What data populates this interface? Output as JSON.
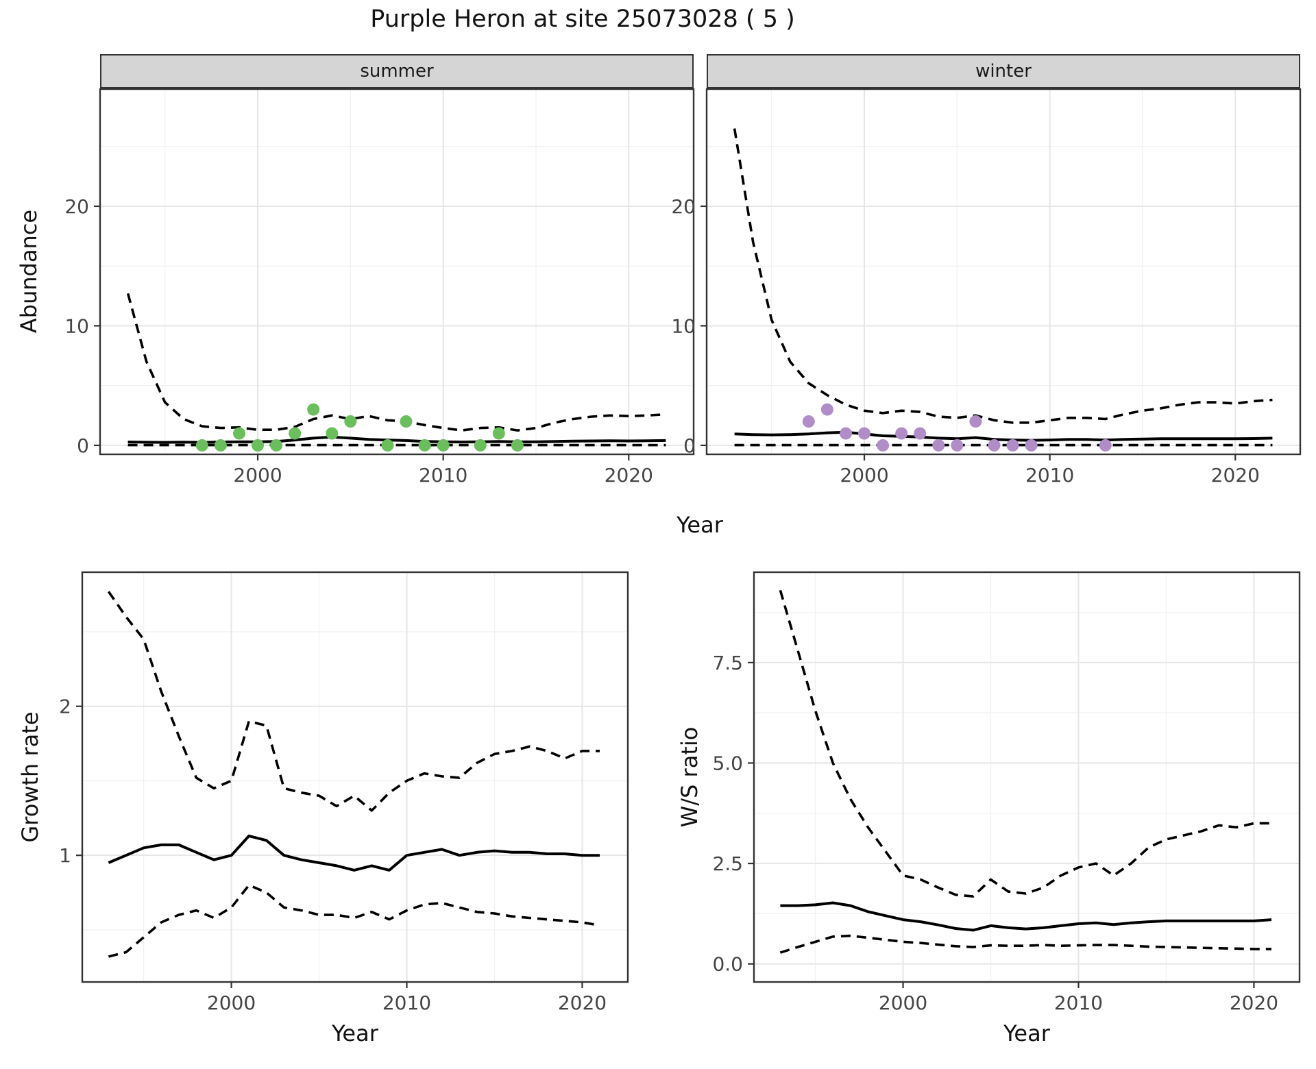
{
  "title": "Purple Heron at site 25073028 ( 5 )",
  "axes": {
    "x_title": "Year",
    "abundance_title": "Abundance",
    "growth_title": "Growth rate",
    "ws_title": "W/S ratio"
  },
  "facets": [
    {
      "label": "summer"
    },
    {
      "label": "winter"
    }
  ],
  "colors": {
    "summer_point": "#6abe5b",
    "winter_point": "#b18dc7",
    "line": "#000000",
    "strip_bg": "#d5d5d5",
    "panel_border": "#333333",
    "grid_major": "#e6e6e6",
    "grid_minor": "#f1f1f1",
    "tick_text": "#444444"
  },
  "chart_data": [
    {
      "id": "summer",
      "type": "line",
      "facet": "summer",
      "xlabel": "Year",
      "ylabel": "Abundance",
      "xlim": [
        1991.5,
        2023.5
      ],
      "ylim": [
        -0.75,
        29.8
      ],
      "xticks": {
        "values": [
          2000,
          2010,
          2020
        ],
        "labels": [
          "2000",
          "2010",
          "2020"
        ]
      },
      "yticks": {
        "values": [
          0,
          10,
          20
        ],
        "labels": [
          "0",
          "10",
          "20"
        ]
      },
      "x_minor": [
        1995,
        2005,
        2015
      ],
      "y_minor": [
        5,
        15,
        25
      ],
      "x": [
        1993,
        1994,
        1995,
        1996,
        1997,
        1998,
        1999,
        2000,
        2001,
        2002,
        2003,
        2004,
        2005,
        2006,
        2007,
        2008,
        2009,
        2010,
        2011,
        2012,
        2013,
        2014,
        2015,
        2016,
        2017,
        2018,
        2019,
        2020,
        2021,
        2022
      ],
      "series": [
        {
          "name": "mean",
          "style": "solid",
          "values": [
            0.28,
            0.26,
            0.25,
            0.27,
            0.25,
            0.28,
            0.3,
            0.3,
            0.33,
            0.45,
            0.6,
            0.7,
            0.6,
            0.5,
            0.45,
            0.4,
            0.33,
            0.3,
            0.28,
            0.3,
            0.32,
            0.3,
            0.3,
            0.33,
            0.35,
            0.37,
            0.38,
            0.37,
            0.38,
            0.4
          ]
        },
        {
          "name": "upper_ci",
          "style": "dashed",
          "values": [
            12.7,
            7.0,
            3.6,
            2.2,
            1.6,
            1.45,
            1.5,
            1.3,
            1.3,
            1.55,
            2.2,
            2.5,
            2.2,
            2.45,
            2.1,
            2.0,
            1.7,
            1.45,
            1.25,
            1.45,
            1.5,
            1.25,
            1.45,
            1.9,
            2.2,
            2.4,
            2.5,
            2.45,
            2.5,
            2.6
          ]
        },
        {
          "name": "lower_ci",
          "style": "dashed",
          "values": [
            0.02,
            0.02,
            0.02,
            0.02,
            0.02,
            0.02,
            0.02,
            0.02,
            0.02,
            0.02,
            0.02,
            0.02,
            0.02,
            0.02,
            0.02,
            0.02,
            0.02,
            0.02,
            0.02,
            0.02,
            0.02,
            0.02,
            0.02,
            0.02,
            0.02,
            0.02,
            0.02,
            0.02,
            0.02,
            0.02
          ]
        }
      ],
      "points": {
        "color_key": "summer_point",
        "x": [
          1997,
          1998,
          1999,
          2000,
          2001,
          2002,
          2003,
          2004,
          2005,
          2007,
          2008,
          2009,
          2010,
          2012,
          2013,
          2014
        ],
        "y": [
          0,
          0,
          1,
          0,
          0,
          1,
          3,
          1,
          2,
          0,
          2,
          0,
          0,
          0,
          1,
          0
        ]
      }
    },
    {
      "id": "winter",
      "type": "line",
      "facet": "winter",
      "xlabel": "Year",
      "ylabel": "Abundance",
      "xlim": [
        1991.5,
        2023.5
      ],
      "ylim": [
        -0.75,
        29.8
      ],
      "xticks": {
        "values": [
          2000,
          2010,
          2020
        ],
        "labels": [
          "2000",
          "2010",
          "2020"
        ]
      },
      "yticks": {
        "values": [
          0,
          10,
          20
        ],
        "labels": [
          "0",
          "10",
          "20"
        ]
      },
      "x_minor": [
        1995,
        2005,
        2015
      ],
      "y_minor": [
        5,
        15,
        25
      ],
      "x": [
        1993,
        1994,
        1995,
        1996,
        1997,
        1998,
        1999,
        2000,
        2001,
        2002,
        2003,
        2004,
        2005,
        2006,
        2007,
        2008,
        2009,
        2010,
        2011,
        2012,
        2013,
        2014,
        2015,
        2016,
        2017,
        2018,
        2019,
        2020,
        2021,
        2022
      ],
      "series": [
        {
          "name": "mean",
          "style": "solid",
          "values": [
            0.95,
            0.9,
            0.88,
            0.9,
            0.95,
            1.05,
            1.1,
            0.95,
            0.8,
            0.75,
            0.7,
            0.6,
            0.55,
            0.65,
            0.5,
            0.45,
            0.42,
            0.45,
            0.5,
            0.5,
            0.45,
            0.5,
            0.52,
            0.55,
            0.55,
            0.55,
            0.55,
            0.55,
            0.57,
            0.6
          ]
        },
        {
          "name": "upper_ci",
          "style": "dashed",
          "values": [
            26.5,
            17.0,
            10.5,
            7.0,
            5.2,
            4.2,
            3.4,
            2.9,
            2.7,
            2.9,
            2.8,
            2.4,
            2.3,
            2.5,
            2.1,
            1.9,
            1.9,
            2.1,
            2.3,
            2.3,
            2.2,
            2.6,
            2.9,
            3.1,
            3.4,
            3.6,
            3.6,
            3.5,
            3.7,
            3.8
          ]
        },
        {
          "name": "lower_ci",
          "style": "dashed",
          "values": [
            0.02,
            0.02,
            0.02,
            0.02,
            0.02,
            0.02,
            0.02,
            0.02,
            0.02,
            0.02,
            0.02,
            0.02,
            0.02,
            0.02,
            0.02,
            0.02,
            0.02,
            0.02,
            0.02,
            0.02,
            0.02,
            0.02,
            0.02,
            0.02,
            0.02,
            0.02,
            0.02,
            0.02,
            0.02,
            0.02
          ]
        }
      ],
      "points": {
        "color_key": "winter_point",
        "x": [
          1997,
          1998,
          1999,
          2000,
          2001,
          2002,
          2003,
          2004,
          2005,
          2006,
          2007,
          2008,
          2009,
          2013
        ],
        "y": [
          2,
          3,
          1,
          1,
          0,
          1,
          1,
          0,
          0,
          2,
          0,
          0,
          0,
          0
        ]
      }
    },
    {
      "id": "growth",
      "type": "line",
      "facet": null,
      "xlabel": "Year",
      "ylabel": "Growth rate",
      "xlim": [
        1991.5,
        2022.6
      ],
      "ylim": [
        0.15,
        2.9
      ],
      "xticks": {
        "values": [
          2000,
          2010,
          2020
        ],
        "labels": [
          "2000",
          "2010",
          "2020"
        ]
      },
      "yticks": {
        "values": [
          1,
          2
        ],
        "labels": [
          "1",
          "2"
        ]
      },
      "x_minor": [
        1995,
        2005,
        2015
      ],
      "y_minor": [
        0.5,
        1.5,
        2.5
      ],
      "x": [
        1993,
        1994,
        1995,
        1996,
        1997,
        1998,
        1999,
        2000,
        2001,
        2002,
        2003,
        2004,
        2005,
        2006,
        2007,
        2008,
        2009,
        2010,
        2011,
        2012,
        2013,
        2014,
        2015,
        2016,
        2017,
        2018,
        2019,
        2020,
        2021
      ],
      "series": [
        {
          "name": "mean",
          "style": "solid",
          "values": [
            0.95,
            1.0,
            1.05,
            1.07,
            1.07,
            1.02,
            0.97,
            1.0,
            1.13,
            1.1,
            1.0,
            0.97,
            0.95,
            0.93,
            0.9,
            0.93,
            0.9,
            1.0,
            1.02,
            1.04,
            1.0,
            1.02,
            1.03,
            1.02,
            1.02,
            1.01,
            1.01,
            1.0,
            1.0
          ]
        },
        {
          "name": "upper_ci",
          "style": "dashed",
          "values": [
            2.77,
            2.6,
            2.45,
            2.1,
            1.8,
            1.52,
            1.45,
            1.5,
            1.9,
            1.87,
            1.45,
            1.42,
            1.4,
            1.33,
            1.4,
            1.3,
            1.42,
            1.5,
            1.55,
            1.53,
            1.52,
            1.62,
            1.68,
            1.7,
            1.73,
            1.7,
            1.65,
            1.7,
            1.7
          ]
        },
        {
          "name": "lower_ci",
          "style": "dashed",
          "values": [
            0.32,
            0.35,
            0.45,
            0.55,
            0.6,
            0.63,
            0.58,
            0.65,
            0.8,
            0.75,
            0.65,
            0.63,
            0.6,
            0.6,
            0.58,
            0.62,
            0.57,
            0.63,
            0.67,
            0.68,
            0.65,
            0.62,
            0.61,
            0.59,
            0.58,
            0.57,
            0.56,
            0.55,
            0.53
          ]
        }
      ],
      "points": null
    },
    {
      "id": "ws",
      "type": "line",
      "facet": null,
      "xlabel": "Year",
      "ylabel": "W/S ratio",
      "xlim": [
        1991.5,
        2022.6
      ],
      "ylim": [
        -0.45,
        9.75
      ],
      "xticks": {
        "values": [
          2000,
          2010,
          2020
        ],
        "labels": [
          "2000",
          "2010",
          "2020"
        ]
      },
      "yticks": {
        "values": [
          0,
          2.5,
          5,
          7.5
        ],
        "labels": [
          "0.0",
          "2.5",
          "5.0",
          "7.5"
        ]
      },
      "x_minor": [
        1995,
        2005,
        2015
      ],
      "y_minor": [
        1.25,
        3.75,
        6.25,
        8.75
      ],
      "x": [
        1993,
        1994,
        1995,
        1996,
        1997,
        1998,
        1999,
        2000,
        2001,
        2002,
        2003,
        2004,
        2005,
        2006,
        2007,
        2008,
        2009,
        2010,
        2011,
        2012,
        2013,
        2014,
        2015,
        2016,
        2017,
        2018,
        2019,
        2020,
        2021
      ],
      "series": [
        {
          "name": "mean",
          "style": "solid",
          "values": [
            1.45,
            1.45,
            1.47,
            1.52,
            1.45,
            1.3,
            1.2,
            1.1,
            1.05,
            0.97,
            0.88,
            0.84,
            0.95,
            0.9,
            0.87,
            0.9,
            0.95,
            1.0,
            1.02,
            0.98,
            1.02,
            1.05,
            1.07,
            1.07,
            1.07,
            1.07,
            1.07,
            1.07,
            1.1
          ]
        },
        {
          "name": "upper_ci",
          "style": "dashed",
          "values": [
            9.3,
            7.8,
            6.3,
            5.0,
            4.1,
            3.4,
            2.8,
            2.2,
            2.1,
            1.9,
            1.72,
            1.68,
            2.1,
            1.8,
            1.75,
            1.9,
            2.2,
            2.4,
            2.5,
            2.2,
            2.5,
            2.9,
            3.1,
            3.2,
            3.3,
            3.45,
            3.4,
            3.5,
            3.5
          ]
        },
        {
          "name": "lower_ci",
          "style": "dashed",
          "values": [
            0.28,
            0.42,
            0.55,
            0.68,
            0.7,
            0.65,
            0.6,
            0.55,
            0.52,
            0.48,
            0.44,
            0.42,
            0.46,
            0.45,
            0.45,
            0.47,
            0.45,
            0.46,
            0.47,
            0.47,
            0.45,
            0.43,
            0.42,
            0.41,
            0.4,
            0.39,
            0.38,
            0.37,
            0.37
          ]
        }
      ],
      "points": null
    }
  ]
}
